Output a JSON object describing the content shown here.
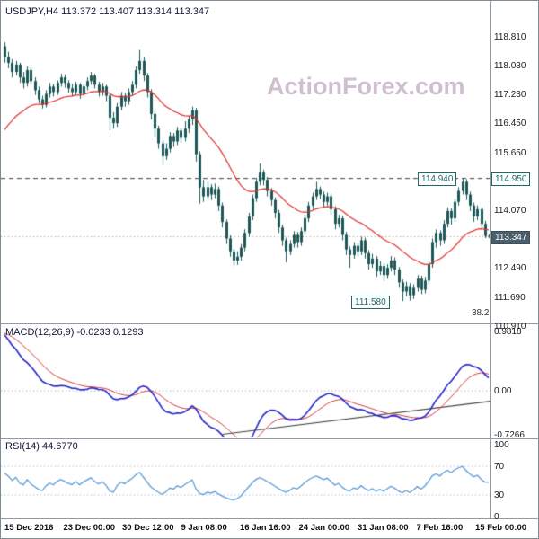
{
  "header": {
    "title": "USDJPY,H4 113.372 113.407 113.314 113.347"
  },
  "watermark": "ActionForex.com",
  "macd_panel": {
    "title": "MACD(12,26,9) -0.0233 0.1293"
  },
  "rsi_panel": {
    "title": "RSI(14) 44.6770"
  },
  "colors": {
    "candle": "#1d5757",
    "ma_line": "#e03030",
    "macd_line": "#2424c8",
    "macd_signal": "#d23a3a",
    "rsi_line": "#5b9bd5",
    "level_dash": "#3a3a3a",
    "current_dotted": "#bb8888",
    "watermark": "#cfc0cf",
    "tag_teal": "#1e6a6a"
  },
  "chart_data": {
    "type": "candlestick",
    "symbol": "USDJPY",
    "timeframe": "H4",
    "current_ohlc": {
      "open": 113.372,
      "high": 113.407,
      "low": 113.314,
      "close": 113.347
    },
    "ylim": [
      110.98,
      119.79
    ],
    "y_axis_ticks": [
      "118.810",
      "118.030",
      "117.230",
      "116.450",
      "115.650",
      "114.070",
      "112.490",
      "111.690",
      "110.910"
    ],
    "x_axis_ticks": [
      "15 Dec 2016",
      "23 Dec 00:00",
      "30 Dec 12:00",
      "9 Jan 08:00",
      "16 Jan 16:00",
      "24 Jan 00:00",
      "31 Jan 08:00",
      "7 Feb 16:00",
      "15 Feb 00:00"
    ],
    "levels": {
      "resistance": 114.94,
      "support": 111.58,
      "current": 113.347
    },
    "labels": {
      "resistance_tag": "114.940",
      "support_tag": "111.580",
      "axis_resistance_tag": "114.950",
      "current_tag": "113.347",
      "fib": "38.2"
    },
    "indicators": {
      "ma": {
        "type": "ema",
        "period": 25
      },
      "macd": {
        "params": [
          12,
          26,
          9
        ],
        "value": -0.0233,
        "signal_value": 0.1293,
        "y_ticks": [
          "0.9818",
          "0.00",
          "-0.7266"
        ],
        "range": [
          -0.7266,
          0.9818
        ],
        "trendline": {
          "from_bar": 58,
          "from_value": -0.72,
          "to_bar": 131,
          "to_value": -0.16
        }
      },
      "rsi": {
        "period": 14,
        "value": 44.677,
        "y_ticks": [
          "100",
          "70",
          "30",
          "0"
        ],
        "levels": [
          70,
          30
        ]
      }
    },
    "candles": [
      [
        118.55,
        118.66,
        118.1,
        118.25
      ],
      [
        118.25,
        118.4,
        117.95,
        118.1
      ],
      [
        118.1,
        118.2,
        117.7,
        117.85
      ],
      [
        117.85,
        118.15,
        117.75,
        118.05
      ],
      [
        118.05,
        118.1,
        117.55,
        117.7
      ],
      [
        117.7,
        117.85,
        117.4,
        117.55
      ],
      [
        117.55,
        118.0,
        117.45,
        117.9
      ],
      [
        117.9,
        117.98,
        117.5,
        117.6
      ],
      [
        117.6,
        117.7,
        117.22,
        117.35
      ],
      [
        117.35,
        117.45,
        117.0,
        117.1
      ],
      [
        117.1,
        117.2,
        116.85,
        116.95
      ],
      [
        116.95,
        117.35,
        116.88,
        117.25
      ],
      [
        117.25,
        117.55,
        117.15,
        117.45
      ],
      [
        117.45,
        117.52,
        117.18,
        117.3
      ],
      [
        117.3,
        117.62,
        117.22,
        117.55
      ],
      [
        117.55,
        117.8,
        117.45,
        117.7
      ],
      [
        117.7,
        117.78,
        117.42,
        117.55
      ],
      [
        117.55,
        117.62,
        117.28,
        117.4
      ],
      [
        117.4,
        117.52,
        117.18,
        117.3
      ],
      [
        117.3,
        117.58,
        117.22,
        117.5
      ],
      [
        117.5,
        117.55,
        117.12,
        117.25
      ],
      [
        117.25,
        117.52,
        117.15,
        117.45
      ],
      [
        117.45,
        117.7,
        117.35,
        117.6
      ],
      [
        117.6,
        117.85,
        117.5,
        117.75
      ],
      [
        117.75,
        117.8,
        117.4,
        117.5
      ],
      [
        117.5,
        117.58,
        117.18,
        117.3
      ],
      [
        117.3,
        117.55,
        117.2,
        117.45
      ],
      [
        117.45,
        117.5,
        117.05,
        117.2
      ],
      [
        117.2,
        117.25,
        116.25,
        116.6
      ],
      [
        116.6,
        116.75,
        116.3,
        116.45
      ],
      [
        116.45,
        117.0,
        116.35,
        116.9
      ],
      [
        116.9,
        117.3,
        116.8,
        117.2
      ],
      [
        117.2,
        117.28,
        116.9,
        117.05
      ],
      [
        117.05,
        117.4,
        116.95,
        117.3
      ],
      [
        117.3,
        117.6,
        117.2,
        117.5
      ],
      [
        117.5,
        118.0,
        117.4,
        117.9
      ],
      [
        117.9,
        118.45,
        117.8,
        118.15
      ],
      [
        118.15,
        118.25,
        117.6,
        117.75
      ],
      [
        117.75,
        117.82,
        117.15,
        117.3
      ],
      [
        117.3,
        117.38,
        116.55,
        116.7
      ],
      [
        116.7,
        116.78,
        116.05,
        116.3
      ],
      [
        116.3,
        116.38,
        115.75,
        115.9
      ],
      [
        115.9,
        115.98,
        115.3,
        115.55
      ],
      [
        115.55,
        115.9,
        115.45,
        115.75
      ],
      [
        115.75,
        116.2,
        115.65,
        116.1
      ],
      [
        116.1,
        116.18,
        115.8,
        115.95
      ],
      [
        115.95,
        116.35,
        115.85,
        116.25
      ],
      [
        116.25,
        116.32,
        115.92,
        116.05
      ],
      [
        116.05,
        116.5,
        115.95,
        116.3
      ],
      [
        116.3,
        116.65,
        116.18,
        116.55
      ],
      [
        116.55,
        116.9,
        116.4,
        116.8
      ],
      [
        116.8,
        116.87,
        115.4,
        115.6
      ],
      [
        115.6,
        115.68,
        114.25,
        114.7
      ],
      [
        114.7,
        114.9,
        114.3,
        114.45
      ],
      [
        114.45,
        114.85,
        114.35,
        114.7
      ],
      [
        114.7,
        114.78,
        114.35,
        114.5
      ],
      [
        114.5,
        114.8,
        114.4,
        114.65
      ],
      [
        114.65,
        114.72,
        114.05,
        114.2
      ],
      [
        114.2,
        114.28,
        113.6,
        113.75
      ],
      [
        113.75,
        113.82,
        113.15,
        113.3
      ],
      [
        113.3,
        113.38,
        112.8,
        112.95
      ],
      [
        112.95,
        113.02,
        112.55,
        112.7
      ],
      [
        112.7,
        112.95,
        112.58,
        112.8
      ],
      [
        112.8,
        113.15,
        112.7,
        113.05
      ],
      [
        113.05,
        113.55,
        112.95,
        113.45
      ],
      [
        113.45,
        114.0,
        113.35,
        113.9
      ],
      [
        113.9,
        114.5,
        113.8,
        114.4
      ],
      [
        114.4,
        114.95,
        114.3,
        114.85
      ],
      [
        114.85,
        115.35,
        114.75,
        115.1
      ],
      [
        115.1,
        115.18,
        114.75,
        114.9
      ],
      [
        114.9,
        114.98,
        114.45,
        114.6
      ],
      [
        114.6,
        114.68,
        114.2,
        114.35
      ],
      [
        114.35,
        114.42,
        113.85,
        114.0
      ],
      [
        114.0,
        114.08,
        113.45,
        113.6
      ],
      [
        113.6,
        113.68,
        113.1,
        113.25
      ],
      [
        113.25,
        113.32,
        112.65,
        112.95
      ],
      [
        112.95,
        113.25,
        112.85,
        113.15
      ],
      [
        113.15,
        113.5,
        113.05,
        113.4
      ],
      [
        113.4,
        113.48,
        113.05,
        113.2
      ],
      [
        113.2,
        113.6,
        113.1,
        113.5
      ],
      [
        113.5,
        113.95,
        113.4,
        113.85
      ],
      [
        113.85,
        114.3,
        113.75,
        114.2
      ],
      [
        114.2,
        114.55,
        114.1,
        114.45
      ],
      [
        114.45,
        114.85,
        114.35,
        114.65
      ],
      [
        114.65,
        114.72,
        114.38,
        114.5
      ],
      [
        114.5,
        114.58,
        114.15,
        114.3
      ],
      [
        114.3,
        114.55,
        114.2,
        114.45
      ],
      [
        114.45,
        114.52,
        113.95,
        114.1
      ],
      [
        114.1,
        114.18,
        113.55,
        113.7
      ],
      [
        113.7,
        113.95,
        113.6,
        113.85
      ],
      [
        113.85,
        113.92,
        113.25,
        113.4
      ],
      [
        113.4,
        113.48,
        112.85,
        113.0
      ],
      [
        113.0,
        113.08,
        112.5,
        112.85
      ],
      [
        112.85,
        113.2,
        112.75,
        113.1
      ],
      [
        113.1,
        113.18,
        112.8,
        112.95
      ],
      [
        112.95,
        113.35,
        112.85,
        113.25
      ],
      [
        113.25,
        113.32,
        112.75,
        112.9
      ],
      [
        112.9,
        112.98,
        112.45,
        112.6
      ],
      [
        112.6,
        112.88,
        112.5,
        112.75
      ],
      [
        112.75,
        112.82,
        112.25,
        112.4
      ],
      [
        112.4,
        112.68,
        112.3,
        112.55
      ],
      [
        112.55,
        112.62,
        112.15,
        112.3
      ],
      [
        112.3,
        112.6,
        112.2,
        112.5
      ],
      [
        112.5,
        112.82,
        112.4,
        112.7
      ],
      [
        112.7,
        112.78,
        112.3,
        112.45
      ],
      [
        112.45,
        112.52,
        111.95,
        112.1
      ],
      [
        112.1,
        112.18,
        111.59,
        111.85
      ],
      [
        111.85,
        112.12,
        111.72,
        112.0
      ],
      [
        112.0,
        112.08,
        111.6,
        111.75
      ],
      [
        111.75,
        112.05,
        111.65,
        111.95
      ],
      [
        111.95,
        112.3,
        111.85,
        112.2
      ],
      [
        112.2,
        112.28,
        111.78,
        111.9
      ],
      [
        111.9,
        112.25,
        111.8,
        112.15
      ],
      [
        112.15,
        112.7,
        112.05,
        112.6
      ],
      [
        112.6,
        113.3,
        112.5,
        113.2
      ],
      [
        113.2,
        113.55,
        113.05,
        113.45
      ],
      [
        113.45,
        113.52,
        113.1,
        113.25
      ],
      [
        113.25,
        113.8,
        113.15,
        113.7
      ],
      [
        113.7,
        114.15,
        113.6,
        114.05
      ],
      [
        114.05,
        114.12,
        113.68,
        113.85
      ],
      [
        113.85,
        114.4,
        113.75,
        114.3
      ],
      [
        114.3,
        114.7,
        114.2,
        114.6
      ],
      [
        114.6,
        114.96,
        114.5,
        114.85
      ],
      [
        114.85,
        114.92,
        114.35,
        114.5
      ],
      [
        114.5,
        114.58,
        114.05,
        114.2
      ],
      [
        114.2,
        114.28,
        113.75,
        113.9
      ],
      [
        113.9,
        114.2,
        113.8,
        114.1
      ],
      [
        114.1,
        114.17,
        113.55,
        113.7
      ],
      [
        113.7,
        113.78,
        113.31,
        113.37
      ],
      [
        113.37,
        113.41,
        113.31,
        113.35
      ]
    ]
  }
}
